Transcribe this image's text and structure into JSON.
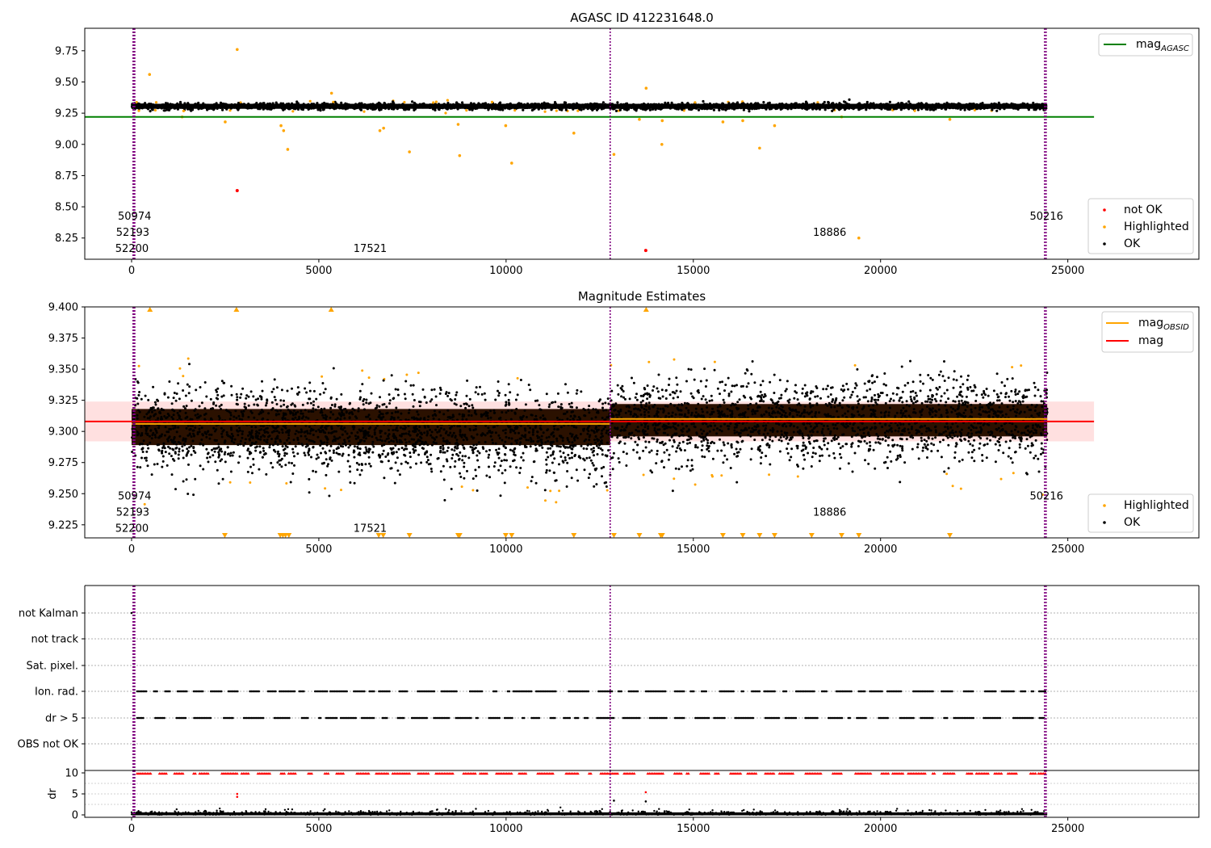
{
  "chart_data": [
    {
      "type": "scatter",
      "title": "AGASC ID 412231648.0",
      "xlim": [
        -1250,
        28500
      ],
      "ylim": [
        8.08,
        9.93
      ],
      "xticks": [
        0,
        5000,
        10000,
        15000,
        20000,
        25000
      ],
      "yticks": [
        8.25,
        8.5,
        8.75,
        9.0,
        9.25,
        9.5,
        9.75
      ],
      "ytick_labels": [
        "8.25",
        "8.50",
        "8.75",
        "9.00",
        "9.25",
        "9.50",
        "9.75"
      ],
      "band": {
        "center": 9.305,
        "half_width": 0.02,
        "x_range": [
          0,
          24450
        ]
      },
      "lines": [
        {
          "name": "mag_AGASC",
          "y": 9.22,
          "x_range": [
            -1250,
            25700
          ],
          "color": "#008000"
        }
      ],
      "outliers": {
        "Highlighted": [
          [
            2820,
            9.76
          ],
          [
            480,
            9.56
          ],
          [
            5340,
            9.41
          ],
          [
            13740,
            9.45
          ],
          [
            3990,
            9.15
          ],
          [
            4060,
            9.11
          ],
          [
            4170,
            8.96
          ],
          [
            6630,
            9.11
          ],
          [
            6730,
            9.13
          ],
          [
            7420,
            8.94
          ],
          [
            8720,
            9.16
          ],
          [
            8760,
            8.91
          ],
          [
            9990,
            9.15
          ],
          [
            10150,
            8.85
          ],
          [
            11810,
            9.09
          ],
          [
            12880,
            8.92
          ],
          [
            13560,
            9.2
          ],
          [
            14170,
            9.19
          ],
          [
            14160,
            9.0
          ],
          [
            15790,
            9.18
          ],
          [
            16320,
            9.19
          ],
          [
            16770,
            8.97
          ],
          [
            17170,
            9.15
          ],
          [
            19420,
            8.25
          ],
          [
            21850,
            9.2
          ],
          [
            2500,
            9.18
          ],
          [
            1350,
            9.22
          ],
          [
            18960,
            9.22
          ]
        ],
        "not OK": [
          [
            2820,
            8.63
          ],
          [
            13730,
            8.15
          ]
        ]
      },
      "legend_lines": [
        {
          "label": "mag",
          "sub": "AGASC",
          "color": "#008000"
        }
      ],
      "legend_points": [
        {
          "label": "not OK",
          "color": "#ff0000"
        },
        {
          "label": "Highlighted",
          "color": "#ffa500"
        },
        {
          "label": "OK",
          "color": "#000000"
        }
      ],
      "vlines": [
        40,
        50,
        55,
        60,
        65,
        70,
        80,
        85,
        12780,
        24380,
        24420
      ],
      "annotations": [
        {
          "text": "50974",
          "x": 80,
          "y": 8.43
        },
        {
          "text": "52193",
          "x": 30,
          "y": 8.3
        },
        {
          "text": "52200",
          "x": 10,
          "y": 8.17
        },
        {
          "text": "17521",
          "x": 6370,
          "y": 8.17
        },
        {
          "text": "18886",
          "x": 18640,
          "y": 8.3
        },
        {
          "text": "50216",
          "x": 24430,
          "y": 8.43
        }
      ]
    },
    {
      "type": "scatter",
      "title": "Magnitude Estimates",
      "xlim": [
        -1250,
        28500
      ],
      "ylim": [
        9.2145,
        9.4
      ],
      "xticks": [
        0,
        5000,
        10000,
        15000,
        20000,
        25000
      ],
      "yticks": [
        9.225,
        9.25,
        9.275,
        9.3,
        9.325,
        9.35,
        9.375,
        9.4
      ],
      "ytick_labels": [
        "9.225",
        "9.250",
        "9.275",
        "9.300",
        "9.325",
        "9.350",
        "9.375",
        "9.400"
      ],
      "band": {
        "center": 9.305,
        "half_width": 0.02,
        "x_range": [
          0,
          24450
        ]
      },
      "shade": {
        "y0": 9.292,
        "y1": 9.324,
        "x_range": [
          -1250,
          25700
        ],
        "color": "#ff0000",
        "opacity": 0.12
      },
      "lines": [
        {
          "name": "mag_OBSID_1",
          "y": 9.306,
          "x_range": [
            0,
            12780
          ],
          "color": "#ffa500"
        },
        {
          "name": "mag_OBSID_2",
          "y": 9.31,
          "x_range": [
            12780,
            24450
          ],
          "color": "#ffa500"
        },
        {
          "name": "mag",
          "y": 9.308,
          "x_range": [
            -1250,
            25700
          ],
          "color": "#ff0000"
        }
      ],
      "markers_top": [
        490,
        2800,
        5330,
        13740
      ],
      "markers_bottom": [
        2490,
        3970,
        4040,
        4110,
        4200,
        6600,
        6720,
        7420,
        8720,
        8760,
        9990,
        10150,
        11810,
        12880,
        13560,
        14130,
        14170,
        15790,
        16320,
        16770,
        17170,
        18160,
        18960,
        19420,
        21850
      ],
      "legend_lines": [
        {
          "label": "mag",
          "sub": "OBSID",
          "color": "#ffa500"
        },
        {
          "label": "mag",
          "sub": "",
          "color": "#ff0000"
        }
      ],
      "legend_points": [
        {
          "label": "Highlighted",
          "color": "#ffa500"
        },
        {
          "label": "OK",
          "color": "#000000"
        }
      ],
      "vlines": [
        40,
        50,
        55,
        60,
        65,
        70,
        80,
        85,
        12780,
        24380,
        24420
      ],
      "annotations": [
        {
          "text": "50974",
          "x": 80,
          "y": 9.2485
        },
        {
          "text": "52193",
          "x": 30,
          "y": 9.2355
        },
        {
          "text": "52200",
          "x": 10,
          "y": 9.2225
        },
        {
          "text": "17521",
          "x": 6370,
          "y": 9.2225
        },
        {
          "text": "18886",
          "x": 18640,
          "y": 9.2355
        },
        {
          "text": "50216",
          "x": 24430,
          "y": 9.2485
        }
      ]
    },
    {
      "type": "scatter",
      "title": "",
      "xlim": [
        -1250,
        28500
      ],
      "categories": [
        "not Kalman",
        "not track",
        "Sat. pixel.",
        "Ion. rad.",
        "dr > 5",
        "OBS not OK"
      ],
      "flagged_categories": [
        "Ion. rad.",
        "dr > 5"
      ],
      "vlines": [
        40,
        50,
        55,
        60,
        65,
        70,
        80,
        85,
        12780,
        24380,
        24420
      ]
    },
    {
      "type": "scatter",
      "title": "",
      "xlim": [
        -1250,
        28500
      ],
      "ylim": [
        -0.5,
        10.5
      ],
      "xticks": [
        0,
        5000,
        10000,
        15000,
        20000,
        25000
      ],
      "yticks": [
        0,
        5,
        10
      ],
      "ylabel": "dr",
      "clip_value": 10,
      "outliers": [
        [
          2820,
          4.3
        ],
        [
          2820,
          5.0
        ],
        [
          13730,
          5.4
        ],
        [
          13730,
          3.2
        ],
        [
          12880,
          3.4
        ]
      ],
      "vlines": [
        40,
        50,
        55,
        60,
        65,
        70,
        80,
        85,
        12780,
        24380,
        24420
      ]
    }
  ]
}
